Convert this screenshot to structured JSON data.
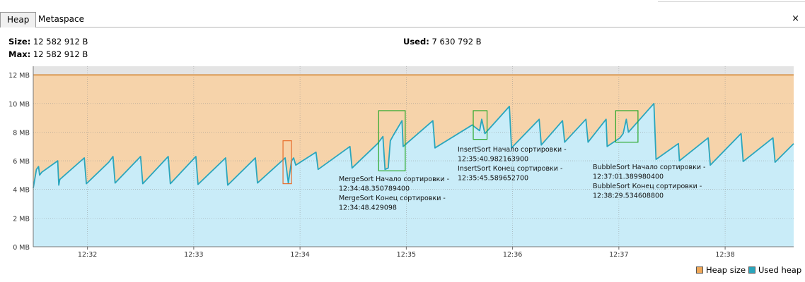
{
  "tabs": [
    {
      "label": "Heap",
      "active": true
    },
    {
      "label": "Metaspace",
      "active": false
    }
  ],
  "close_icon": "×",
  "stats": {
    "size_label": "Size:",
    "size_value": "12 582 912 B",
    "max_label": "Max:",
    "max_value": "12 582 912 B",
    "used_label": "Used:",
    "used_value": "7 630 792 B"
  },
  "colors": {
    "heap_fill": "#f6d3aa",
    "heap_line": "#d4822a",
    "used_fill": "#c9ecf8",
    "used_line": "#2aa6bd",
    "green_box": "#2aa82a",
    "orange_box": "#e86e2c"
  },
  "legend": [
    {
      "name": "Heap size",
      "color": "#f0a858"
    },
    {
      "name": "Used heap",
      "color": "#2aa6bd"
    }
  ],
  "chart_data": {
    "type": "area",
    "y_unit": "MB",
    "ylim": [
      0,
      12.6
    ],
    "yticks": [
      "0 MB",
      "2 MB",
      "4 MB",
      "6 MB",
      "8 MB",
      "10 MB",
      "12 MB"
    ],
    "ytick_values": [
      0,
      2,
      4,
      6,
      8,
      10,
      12
    ],
    "x_unit": "minutes",
    "xlim": [
      31.49,
      38.645
    ],
    "xticks": [
      "12:32",
      "12:33",
      "12:34",
      "12:35",
      "12:36",
      "12:37",
      "12:38"
    ],
    "xtick_values": [
      32,
      33,
      34,
      35,
      36,
      37,
      38
    ],
    "grid": true,
    "legend_position": "bottom-right",
    "series": [
      {
        "name": "Heap size",
        "constant": 12.0
      },
      {
        "name": "Used heap",
        "points": [
          [
            31.49,
            4.1
          ],
          [
            31.52,
            5.4
          ],
          [
            31.54,
            5.6
          ],
          [
            31.55,
            5.0
          ],
          [
            31.57,
            5.2
          ],
          [
            31.72,
            6.0
          ],
          [
            31.73,
            4.3
          ],
          [
            31.74,
            4.7
          ],
          [
            31.97,
            6.2
          ],
          [
            31.99,
            4.4
          ],
          [
            32.2,
            5.9
          ],
          [
            32.24,
            6.3
          ],
          [
            32.26,
            4.45
          ],
          [
            32.5,
            6.3
          ],
          [
            32.52,
            4.4
          ],
          [
            32.76,
            6.3
          ],
          [
            32.78,
            4.4
          ],
          [
            33.02,
            6.3
          ],
          [
            33.04,
            4.35
          ],
          [
            33.3,
            6.2
          ],
          [
            33.32,
            4.3
          ],
          [
            33.58,
            6.2
          ],
          [
            33.6,
            4.45
          ],
          [
            33.86,
            6.2
          ],
          [
            33.89,
            4.45
          ],
          [
            33.92,
            6.0
          ],
          [
            33.94,
            6.2
          ],
          [
            33.96,
            5.7
          ],
          [
            34.15,
            6.6
          ],
          [
            34.17,
            5.4
          ],
          [
            34.47,
            7.0
          ],
          [
            34.49,
            5.5
          ],
          [
            34.73,
            7.2
          ],
          [
            34.78,
            7.7
          ],
          [
            34.8,
            5.4
          ],
          [
            34.83,
            5.5
          ],
          [
            34.85,
            7.4
          ],
          [
            34.88,
            7.8
          ],
          [
            34.96,
            8.8
          ],
          [
            34.97,
            7.0
          ],
          [
            35.25,
            8.8
          ],
          [
            35.27,
            6.9
          ],
          [
            35.62,
            8.5
          ],
          [
            35.69,
            8.1
          ],
          [
            35.71,
            8.9
          ],
          [
            35.74,
            7.9
          ],
          [
            35.97,
            9.8
          ],
          [
            35.99,
            6.9
          ],
          [
            36.25,
            8.9
          ],
          [
            36.27,
            7.1
          ],
          [
            36.47,
            8.8
          ],
          [
            36.49,
            7.3
          ],
          [
            36.69,
            8.9
          ],
          [
            36.71,
            7.3
          ],
          [
            36.88,
            8.9
          ],
          [
            36.89,
            7.0
          ],
          [
            37.01,
            7.6
          ],
          [
            37.04,
            7.9
          ],
          [
            37.07,
            8.9
          ],
          [
            37.09,
            8.0
          ],
          [
            37.33,
            10.0
          ],
          [
            37.35,
            6.1
          ],
          [
            37.56,
            7.2
          ],
          [
            37.57,
            6.0
          ],
          [
            37.84,
            7.6
          ],
          [
            37.86,
            5.7
          ],
          [
            38.15,
            7.9
          ],
          [
            38.17,
            5.95
          ],
          [
            38.45,
            7.6
          ],
          [
            38.47,
            5.9
          ],
          [
            38.645,
            7.2
          ]
        ]
      }
    ],
    "annotations": [
      {
        "color": "orange",
        "x": [
          33.84,
          33.92
        ],
        "y": [
          4.4,
          7.4
        ]
      },
      {
        "color": "green",
        "x": [
          34.74,
          34.99
        ],
        "y": [
          5.3,
          9.5
        ],
        "lines": [
          "MergeSort Начало сортировки -",
          "12:34:48.350789400",
          "MergeSort Конец сортировки -",
          "12:34:48.429098"
        ]
      },
      {
        "color": "green",
        "x": [
          35.63,
          35.76
        ],
        "y": [
          7.5,
          9.5
        ],
        "lines": [
          "InsertSort Начало сортировки -",
          "12:35:40.982163900",
          "InsertSort Конец сортировки -",
          "12:35:45.589652700"
        ]
      },
      {
        "color": "green",
        "x": [
          36.97,
          37.18
        ],
        "y": [
          7.3,
          9.5
        ],
        "lines": [
          "BubbleSort Начало сортировки -",
          "12:37:01.389980400",
          "BubbleSort Конец сортировки -",
          "12:38:29.534608800"
        ]
      }
    ]
  }
}
